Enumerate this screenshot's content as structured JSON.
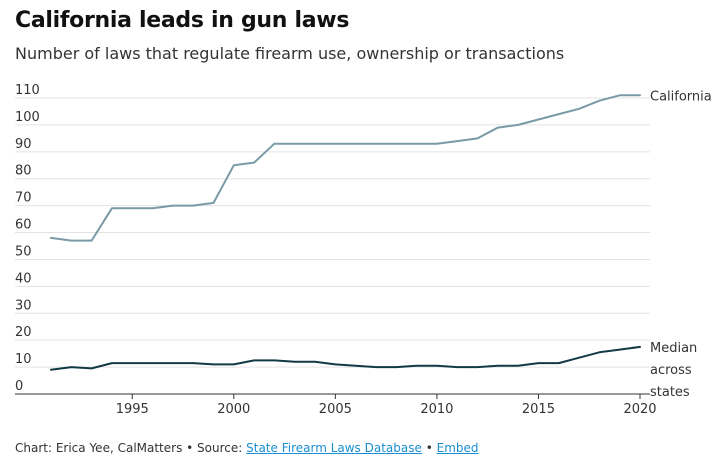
{
  "chart_data": {
    "type": "line",
    "title": "California leads in gun laws",
    "subtitle": "Number of laws that regulate firearm use, ownership or transactions",
    "xlabel": "",
    "ylabel": "",
    "xlim": [
      1991,
      2020
    ],
    "ylim": [
      0,
      110
    ],
    "xticks": [
      1995,
      2000,
      2005,
      2010,
      2015,
      2020
    ],
    "yticks": [
      0,
      10,
      20,
      30,
      40,
      50,
      60,
      70,
      80,
      90,
      100,
      110
    ],
    "grid": true,
    "x": [
      1991,
      1992,
      1993,
      1994,
      1995,
      1996,
      1997,
      1998,
      1999,
      2000,
      2001,
      2002,
      2003,
      2004,
      2005,
      2006,
      2007,
      2008,
      2009,
      2010,
      2011,
      2012,
      2013,
      2014,
      2015,
      2016,
      2017,
      2018,
      2019,
      2020
    ],
    "series": [
      {
        "name": "California",
        "color": "#7a9aa6",
        "values": [
          58,
          57,
          57,
          69,
          69,
          69,
          70,
          70,
          71,
          85,
          86,
          93,
          93,
          93,
          93,
          93,
          93,
          93,
          93,
          93,
          94,
          95,
          99,
          100,
          102,
          104,
          106,
          109,
          111,
          111
        ],
        "label_lines": [
          "California"
        ]
      },
      {
        "name": "Median across states",
        "color": "#123a45",
        "values": [
          9,
          10,
          9.5,
          11.5,
          11.5,
          11.5,
          11.5,
          11.5,
          11,
          11,
          12.5,
          12.5,
          12,
          12,
          11,
          10.5,
          10,
          10,
          10.5,
          10.5,
          10,
          10,
          10.5,
          10.5,
          11.5,
          11.5,
          13.5,
          15.5,
          16.5,
          17.5
        ],
        "label_lines": [
          "Median",
          "across",
          "states"
        ]
      }
    ]
  },
  "footer": {
    "prefix": "Chart: Erica Yee, CalMatters • Source: ",
    "source_link": "State Firearm Laws Database",
    "separator": " • ",
    "embed_link": "Embed"
  }
}
